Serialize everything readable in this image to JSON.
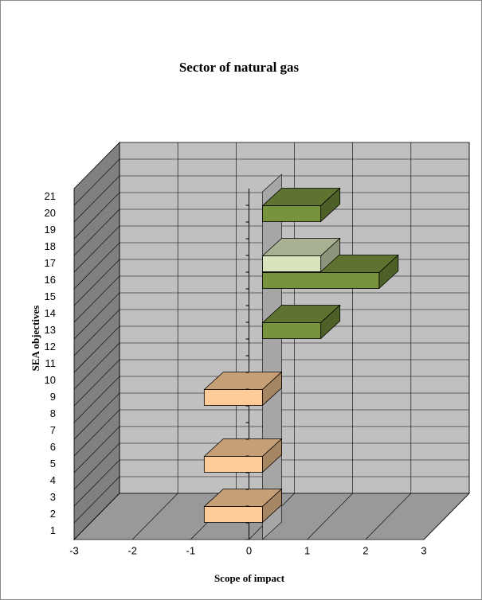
{
  "chart_data": {
    "type": "bar3d",
    "orientation": "horizontal",
    "title": "Sector of natural gas",
    "x_label": "Scope of impact",
    "y_label": "SEA objectives",
    "categories": [
      "1",
      "2",
      "3",
      "4",
      "5",
      "6",
      "7",
      "8",
      "9",
      "10",
      "11",
      "12",
      "13",
      "14",
      "15",
      "16",
      "17",
      "18",
      "19",
      "20",
      "21"
    ],
    "values": [
      0,
      -1,
      0,
      0,
      -1,
      0,
      0,
      0,
      -1,
      0,
      0,
      0,
      1,
      0,
      0,
      2,
      1,
      0,
      0,
      1,
      0
    ],
    "colors": [
      null,
      "#ffcc99",
      null,
      null,
      "#ffcc99",
      null,
      null,
      null,
      "#ffcc99",
      null,
      null,
      null,
      "#77933c",
      null,
      null,
      "#77933c",
      "#d7e4bd",
      null,
      null,
      "#77933c",
      null
    ],
    "xlim": [
      -3,
      3
    ],
    "xticks": [
      -3,
      -2,
      -1,
      0,
      1,
      2,
      3
    ],
    "grid": true
  }
}
